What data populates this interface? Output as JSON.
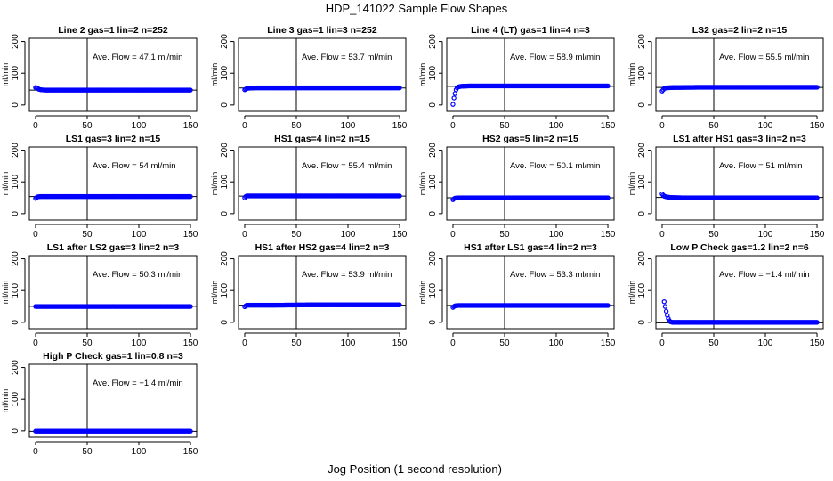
{
  "title": "HDP_141022  Sample Flow Shapes",
  "xlabel": "Jog Position (1 second resolution)",
  "colors": {
    "points": "#0000ff",
    "axes": "#000000"
  },
  "chart_data": [
    {
      "type": "scatter",
      "title": "Line 2 gas=1 lin=2 n=252",
      "ylabel": "ml/min",
      "xlim": [
        0,
        150
      ],
      "ylim": [
        -20,
        210
      ],
      "xticks": [
        0,
        50,
        100,
        150
      ],
      "yticks": [
        0,
        100,
        200
      ],
      "vline": 50,
      "hline": 47.1,
      "annotation": "Ave. Flow =  47.1  ml/min",
      "series": [
        {
          "values": [
            [
              0,
              55
            ],
            [
              1,
              54
            ],
            [
              2,
              53
            ],
            [
              3,
              50
            ],
            [
              5,
              48
            ],
            [
              10,
              47
            ],
            [
              20,
              47
            ],
            [
              40,
              47
            ],
            [
              60,
              47
            ],
            [
              80,
              47
            ],
            [
              100,
              47
            ],
            [
              120,
              47
            ],
            [
              140,
              47
            ],
            [
              150,
              47
            ]
          ]
        }
      ]
    },
    {
      "type": "scatter",
      "title": "Line 3 gas=1 lin=3 n=252",
      "ylabel": "ml/min",
      "xlim": [
        0,
        150
      ],
      "ylim": [
        -20,
        210
      ],
      "xticks": [
        0,
        50,
        100,
        150
      ],
      "yticks": [
        0,
        100,
        200
      ],
      "vline": 50,
      "hline": 53.7,
      "annotation": "Ave. Flow =  53.7  ml/min",
      "series": [
        {
          "values": [
            [
              0,
              48
            ],
            [
              1,
              50
            ],
            [
              2,
              52
            ],
            [
              4,
              53
            ],
            [
              10,
              54
            ],
            [
              30,
              54
            ],
            [
              60,
              54
            ],
            [
              90,
              54
            ],
            [
              120,
              54
            ],
            [
              150,
              54
            ]
          ]
        }
      ]
    },
    {
      "type": "scatter",
      "title": "Line 4 (LT) gas=1 lin=4 n=3",
      "ylabel": "ml/min",
      "xlim": [
        0,
        150
      ],
      "ylim": [
        -20,
        210
      ],
      "xticks": [
        0,
        50,
        100,
        150
      ],
      "yticks": [
        0,
        100,
        200
      ],
      "vline": 50,
      "hline": 58.9,
      "annotation": "Ave. Flow =  58.9  ml/min",
      "series": [
        {
          "values": [
            [
              0,
              2
            ],
            [
              1,
              22
            ],
            [
              2,
              36
            ],
            [
              3,
              48
            ],
            [
              4,
              54
            ],
            [
              5,
              57
            ],
            [
              8,
              59
            ],
            [
              15,
              60
            ],
            [
              30,
              60
            ],
            [
              60,
              60
            ],
            [
              90,
              60
            ],
            [
              120,
              60
            ],
            [
              150,
              60
            ]
          ]
        }
      ]
    },
    {
      "type": "scatter",
      "title": "LS2 gas=2 lin=2 n=15",
      "ylabel": "ml/min",
      "xlim": [
        0,
        150
      ],
      "ylim": [
        -20,
        210
      ],
      "xticks": [
        0,
        50,
        100,
        150
      ],
      "yticks": [
        0,
        100,
        200
      ],
      "vline": 50,
      "hline": 55.5,
      "annotation": "Ave. Flow =  55.5  ml/min",
      "series": [
        {
          "values": [
            [
              0,
              44
            ],
            [
              1,
              48
            ],
            [
              2,
              52
            ],
            [
              4,
              54
            ],
            [
              10,
              55
            ],
            [
              40,
              56
            ],
            [
              80,
              56
            ],
            [
              120,
              56
            ],
            [
              150,
              56
            ]
          ]
        }
      ]
    },
    {
      "type": "scatter",
      "title": "LS1 gas=3 lin=2 n=15",
      "ylabel": "ml/min",
      "xlim": [
        0,
        150
      ],
      "ylim": [
        -20,
        210
      ],
      "xticks": [
        0,
        50,
        100,
        150
      ],
      "yticks": [
        0,
        100,
        200
      ],
      "vline": 50,
      "hline": 54,
      "annotation": "Ave. Flow =  54  ml/min",
      "series": [
        {
          "values": [
            [
              0,
              48
            ],
            [
              1,
              51
            ],
            [
              2,
              53
            ],
            [
              5,
              54
            ],
            [
              30,
              54
            ],
            [
              60,
              54
            ],
            [
              90,
              54
            ],
            [
              120,
              54
            ],
            [
              150,
              54
            ]
          ]
        }
      ]
    },
    {
      "type": "scatter",
      "title": "HS1 gas=4 lin=2 n=15",
      "ylabel": "ml/min",
      "xlim": [
        0,
        150
      ],
      "ylim": [
        -20,
        210
      ],
      "xticks": [
        0,
        50,
        100,
        150
      ],
      "yticks": [
        0,
        100,
        200
      ],
      "vline": 50,
      "hline": 55.4,
      "annotation": "Ave. Flow =  55.4  ml/min",
      "series": [
        {
          "values": [
            [
              0,
              50
            ],
            [
              1,
              54
            ],
            [
              2,
              56
            ],
            [
              5,
              56
            ],
            [
              30,
              56
            ],
            [
              60,
              56
            ],
            [
              90,
              56
            ],
            [
              120,
              56
            ],
            [
              150,
              56
            ]
          ]
        }
      ]
    },
    {
      "type": "scatter",
      "title": "HS2 gas=5 lin=2 n=15",
      "ylabel": "ml/min",
      "xlim": [
        0,
        150
      ],
      "ylim": [
        -20,
        210
      ],
      "xticks": [
        0,
        50,
        100,
        150
      ],
      "yticks": [
        0,
        100,
        200
      ],
      "vline": 50,
      "hline": 50.1,
      "annotation": "Ave. Flow =  50.1  ml/min",
      "series": [
        {
          "values": [
            [
              0,
              44
            ],
            [
              1,
              47
            ],
            [
              2,
              49
            ],
            [
              5,
              50
            ],
            [
              30,
              50
            ],
            [
              60,
              50
            ],
            [
              90,
              50
            ],
            [
              120,
              50
            ],
            [
              150,
              50
            ]
          ]
        }
      ]
    },
    {
      "type": "scatter",
      "title": "LS1 after HS1 gas=3 lin=2 n=3",
      "ylabel": "ml/min",
      "xlim": [
        0,
        150
      ],
      "ylim": [
        -20,
        210
      ],
      "xticks": [
        0,
        50,
        100,
        150
      ],
      "yticks": [
        0,
        100,
        200
      ],
      "vline": 50,
      "hline": 51,
      "annotation": "Ave. Flow =  51  ml/min",
      "series": [
        {
          "values": [
            [
              0,
              62
            ],
            [
              1,
              58
            ],
            [
              2,
              55
            ],
            [
              4,
              53
            ],
            [
              8,
              51
            ],
            [
              20,
              50
            ],
            [
              50,
              50
            ],
            [
              80,
              50
            ],
            [
              110,
              50
            ],
            [
              140,
              50
            ],
            [
              150,
              50
            ]
          ]
        }
      ]
    },
    {
      "type": "scatter",
      "title": "LS1 after LS2 gas=3 lin=2 n=3",
      "ylabel": "ml/min",
      "xlim": [
        0,
        150
      ],
      "ylim": [
        -20,
        210
      ],
      "xticks": [
        0,
        50,
        100,
        150
      ],
      "yticks": [
        0,
        100,
        200
      ],
      "vline": 50,
      "hline": 50.3,
      "annotation": "Ave. Flow =  50.3  ml/min",
      "series": [
        {
          "values": [
            [
              0,
              50
            ],
            [
              1,
              50
            ],
            [
              5,
              50
            ],
            [
              30,
              50
            ],
            [
              60,
              50
            ],
            [
              90,
              50
            ],
            [
              120,
              50
            ],
            [
              150,
              50
            ]
          ]
        }
      ]
    },
    {
      "type": "scatter",
      "title": "HS1 after HS2 gas=4 lin=2 n=3",
      "ylabel": "ml/min",
      "xlim": [
        0,
        150
      ],
      "ylim": [
        -20,
        210
      ],
      "xticks": [
        0,
        50,
        100,
        150
      ],
      "yticks": [
        0,
        100,
        200
      ],
      "vline": 50,
      "hline": 53.9,
      "annotation": "Ave. Flow =  53.9  ml/min",
      "series": [
        {
          "values": [
            [
              0,
              49
            ],
            [
              1,
              52
            ],
            [
              2,
              54
            ],
            [
              5,
              54
            ],
            [
              30,
              54
            ],
            [
              60,
              55
            ],
            [
              90,
              55
            ],
            [
              120,
              55
            ],
            [
              150,
              55
            ]
          ]
        }
      ]
    },
    {
      "type": "scatter",
      "title": "HS1 after LS1 gas=4 lin=2 n=3",
      "ylabel": "ml/min",
      "xlim": [
        0,
        150
      ],
      "ylim": [
        -20,
        210
      ],
      "xticks": [
        0,
        50,
        100,
        150
      ],
      "yticks": [
        0,
        100,
        200
      ],
      "vline": 50,
      "hline": 53.3,
      "annotation": "Ave. Flow =  53.3  ml/min",
      "series": [
        {
          "values": [
            [
              0,
              47
            ],
            [
              1,
              50
            ],
            [
              2,
              52
            ],
            [
              5,
              53
            ],
            [
              30,
              53
            ],
            [
              60,
              53
            ],
            [
              90,
              53
            ],
            [
              120,
              53
            ],
            [
              150,
              53
            ]
          ]
        }
      ]
    },
    {
      "type": "scatter",
      "title": "Low P Check gas=1.2 lin=2 n=6",
      "ylabel": "ml/min",
      "xlim": [
        0,
        150
      ],
      "ylim": [
        -20,
        210
      ],
      "xticks": [
        0,
        50,
        100,
        150
      ],
      "yticks": [
        0,
        100,
        200
      ],
      "vline": 50,
      "hline": -1.4,
      "annotation": "Ave. Flow =  −1.4  ml/min",
      "series": [
        {
          "values": [
            [
              2,
              65
            ],
            [
              3,
              50
            ],
            [
              4,
              35
            ],
            [
              5,
              22
            ],
            [
              6,
              12
            ],
            [
              7,
              5
            ],
            [
              8,
              2
            ],
            [
              10,
              0
            ],
            [
              15,
              0
            ],
            [
              30,
              0
            ],
            [
              60,
              0
            ],
            [
              90,
              0
            ],
            [
              120,
              0
            ],
            [
              150,
              0
            ]
          ]
        }
      ]
    },
    {
      "type": "scatter",
      "title": "High P Check gas=1 lin=0.8 n=3",
      "ylabel": "ml/min",
      "xlim": [
        0,
        150
      ],
      "ylim": [
        -20,
        210
      ],
      "xticks": [
        0,
        50,
        100,
        150
      ],
      "yticks": [
        0,
        100,
        200
      ],
      "vline": 50,
      "hline": -1.4,
      "annotation": "Ave. Flow =  −1.4  ml/min",
      "series": [
        {
          "values": [
            [
              0,
              -1
            ],
            [
              1,
              -1
            ],
            [
              5,
              -1
            ],
            [
              30,
              -1
            ],
            [
              60,
              -1
            ],
            [
              90,
              -1
            ],
            [
              120,
              -1
            ],
            [
              150,
              -1
            ]
          ]
        }
      ]
    }
  ]
}
